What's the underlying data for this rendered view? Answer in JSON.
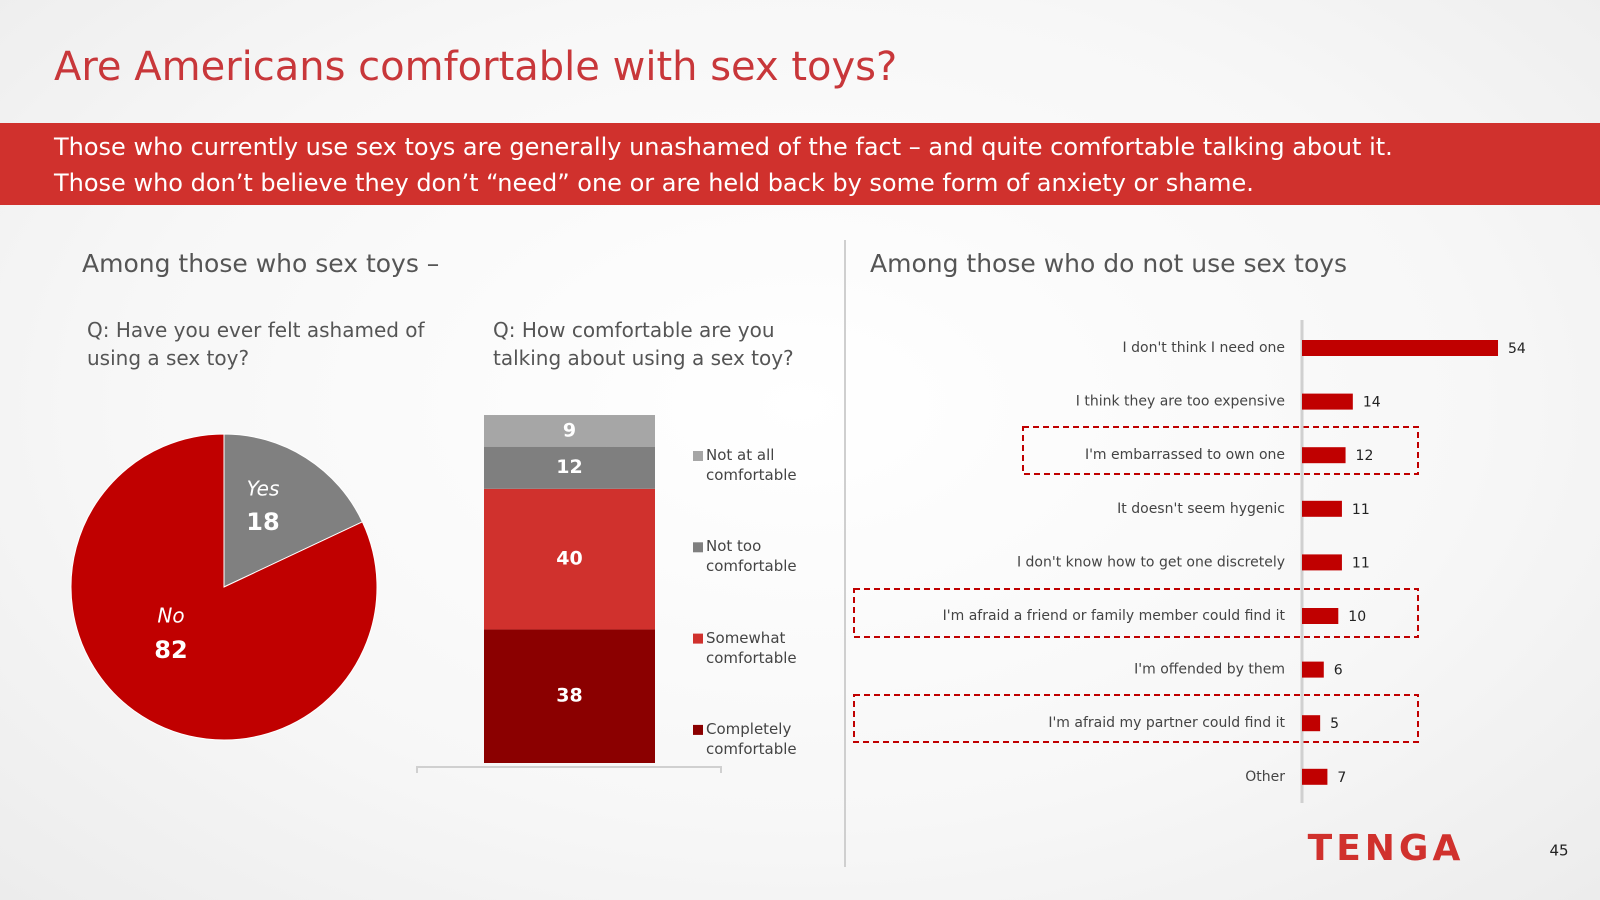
{
  "title": "Are Americans comfortable with sex toys?",
  "subtitle": [
    "Those who currently use sex toys are generally unashamed of the fact – and quite comfortable talking about it.",
    "Those who don’t believe they don’t “need” one or are held back by some form of anxiety or shame."
  ],
  "sections": [
    "Among those who sex toys –",
    "Among those who do not use sex toys"
  ],
  "logo": "TENGA",
  "page_number": 45,
  "chart_data": [
    {
      "type": "pie",
      "title": "Q: Have you ever felt ashamed of using a sex toy?",
      "categories": [
        "Yes",
        "No"
      ],
      "values": [
        18,
        82
      ],
      "colors": [
        "#808080",
        "#c00000"
      ]
    },
    {
      "type": "stacked_bar",
      "title": "Q: How comfortable are you talking about using a sex toy?",
      "series": [
        {
          "name": "Not at all comfortable",
          "color": "#a6a6a6",
          "values": [
            9
          ]
        },
        {
          "name": "Not too comfortable",
          "color": "#7f7f7f",
          "values": [
            12
          ]
        },
        {
          "name": "Somewhat comfortable",
          "color": "#d0312d",
          "values": [
            40
          ]
        },
        {
          "name": "Completely comfortable",
          "color": "#8b0000",
          "values": [
            38
          ]
        }
      ]
    },
    {
      "type": "hbar",
      "categories": [
        "I don't think I need one",
        "I think they are too expensive",
        "I'm embarrassed to own one",
        "It doesn't seem hygenic",
        "I don't know how to get one discretely",
        "I'm afraid a friend or family member could find it",
        "I'm offended by them",
        "I'm afraid my partner could find it",
        "Other"
      ],
      "values": [
        54,
        14,
        12,
        11,
        11,
        10,
        6,
        5,
        7
      ],
      "color": "#c00000"
    }
  ]
}
